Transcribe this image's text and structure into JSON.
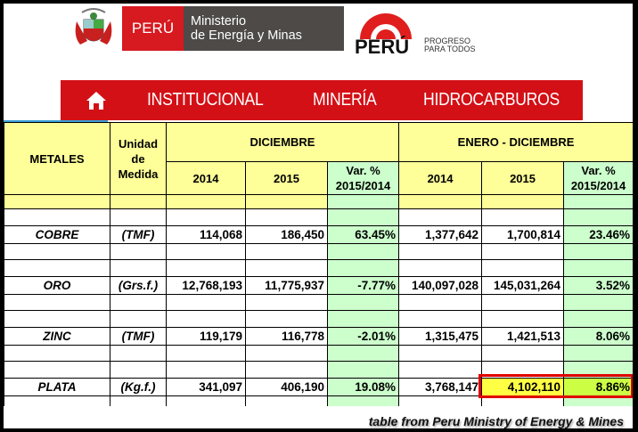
{
  "header": {
    "peru_label": "PERÚ",
    "ministry_line1": "Ministerio",
    "ministry_line2": "de Energía y Minas",
    "brand_word": "PERÚ",
    "brand_tag1": "PROGRESO",
    "brand_tag2": "PARA TODOS"
  },
  "nav": {
    "items": [
      {
        "label": "INSTITUCIONAL"
      },
      {
        "label": "MINERÍA"
      },
      {
        "label": "HIDROCARBUROS"
      }
    ]
  },
  "table": {
    "col_metales": "METALES",
    "col_unidad": "Unidad de Medida",
    "group1": "DICIEMBRE",
    "group2": "ENERO - DICIEMBRE",
    "sub": [
      "2014",
      "2015",
      "Var. % 2015/2014",
      "2014",
      "2015",
      "Var. % 2015/2014"
    ],
    "rows": [
      {
        "metal": "COBRE",
        "unit": "(TMF)",
        "dic2014": "114,068",
        "dic2015": "186,450",
        "dic_var": "63.45%",
        "ed2014": "1,377,642",
        "ed2015": "1,700,814",
        "ed_var": "23.46%"
      },
      {
        "metal": "ORO",
        "unit": "(Grs.f.)",
        "dic2014": "12,768,193",
        "dic2015": "11,775,937",
        "dic_var": "-7.77%",
        "ed2014": "140,097,028",
        "ed2015": "145,031,264",
        "ed_var": "3.52%"
      },
      {
        "metal": "ZINC",
        "unit": "(TMF)",
        "dic2014": "119,179",
        "dic2015": "116,778",
        "dic_var": "-2.01%",
        "ed2014": "1,315,475",
        "ed2015": "1,421,513",
        "ed_var": "8.06%"
      },
      {
        "metal": "PLATA",
        "unit": "(Kg.f.)",
        "dic2014": "341,097",
        "dic2015": "406,190",
        "dic_var": "19.08%",
        "ed2014": "3,768,147",
        "ed2015": "4,102,110",
        "ed_var": "8.86%"
      }
    ]
  },
  "caption": "table from Peru Ministry of Energy & Mines",
  "colors": {
    "nav_red": "#d31016",
    "header_yellow": "#ffff99",
    "var_green": "#ccffcc",
    "highlight_red": "#e00000"
  }
}
